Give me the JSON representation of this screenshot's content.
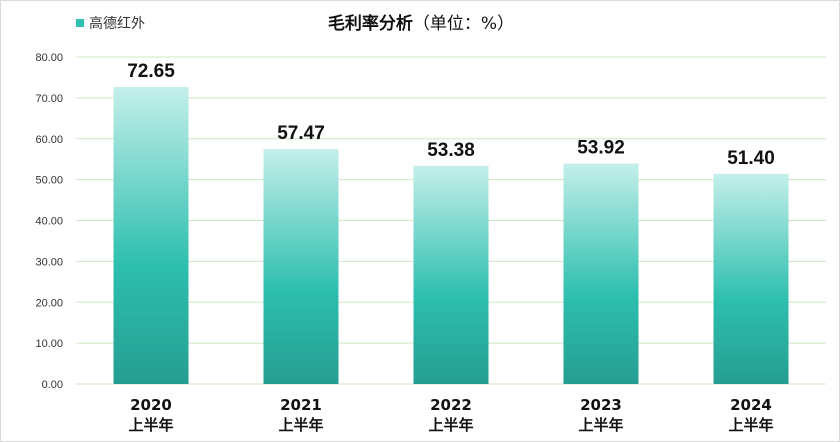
{
  "chart_data": {
    "type": "bar",
    "title": "毛利率分析",
    "subtitle": "（单位：%）",
    "legend": {
      "label": "高德红外",
      "placement": "top-left"
    },
    "categories": [
      [
        "2020",
        "上半年"
      ],
      [
        "2021",
        "上半年"
      ],
      [
        "2022",
        "上半年"
      ],
      [
        "2023",
        "上半年"
      ],
      [
        "2024",
        "上半年"
      ]
    ],
    "series": [
      {
        "name": "高德红外",
        "values": [
          72.65,
          57.47,
          53.38,
          53.92,
          51.4
        ]
      }
    ],
    "data_labels": [
      "72.65",
      "57.47",
      "53.38",
      "53.92",
      "51.40"
    ],
    "y_ticks": [
      "0.00",
      "10.00",
      "20.00",
      "30.00",
      "40.00",
      "50.00",
      "60.00",
      "70.00",
      "80.00"
    ],
    "ylim": [
      0,
      80
    ],
    "grid": true,
    "colors": {
      "bar_top": "#c4efea",
      "bar_mid": "#2dbfaf",
      "bar_bottom": "#259e91",
      "grid": "#cde8c4",
      "legend_swatch": "#2dbfaf"
    }
  }
}
